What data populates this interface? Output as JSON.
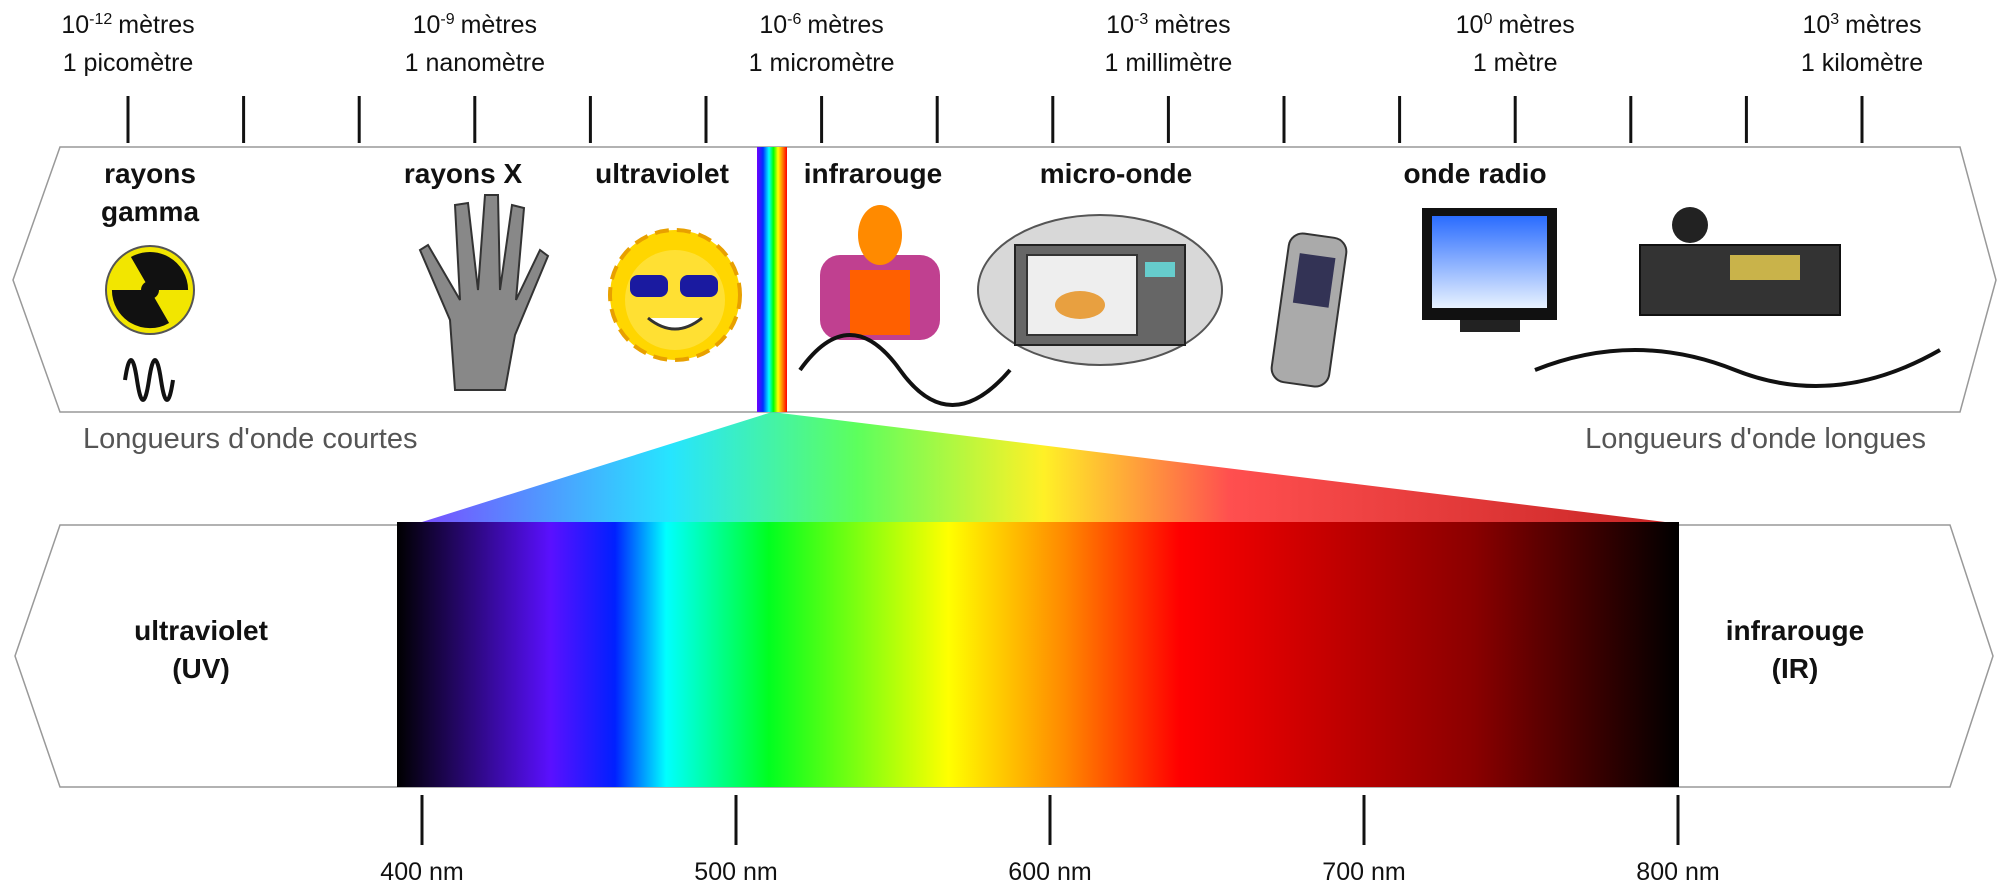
{
  "scale": [
    {
      "base": "10",
      "exp": "-12",
      "unit": "mètres",
      "name": "1 picomètre"
    },
    {
      "base": "10",
      "exp": "-9",
      "unit": "mètres",
      "name": "1 nanomètre"
    },
    {
      "base": "10",
      "exp": "-6",
      "unit": "mètres",
      "name": "1 micromètre"
    },
    {
      "base": "10",
      "exp": "-3",
      "unit": "mètres",
      "name": "1 millimètre"
    },
    {
      "base": "10",
      "exp": "0",
      "unit": "mètres",
      "name": "1 mètre"
    },
    {
      "base": "10",
      "exp": "3",
      "unit": "mètres",
      "name": "1 kilomètre"
    }
  ],
  "bands": [
    {
      "label": [
        "rayons",
        "gamma"
      ]
    },
    {
      "label": [
        "rayons X"
      ]
    },
    {
      "label": [
        "ultraviolet"
      ]
    },
    {
      "label": [
        "infrarouge"
      ]
    },
    {
      "label": [
        "micro-onde"
      ]
    },
    {
      "label": [
        "onde radio"
      ]
    }
  ],
  "short_label": "Longueurs d'onde courtes",
  "long_label": "Longueurs d'onde longues",
  "visible": {
    "left": [
      "ultraviolet",
      "(UV)"
    ],
    "right": [
      "infrarouge",
      "(IR)"
    ],
    "ticks": [
      "400 nm",
      "500 nm",
      "600 nm",
      "700 nm",
      "800 nm"
    ]
  }
}
